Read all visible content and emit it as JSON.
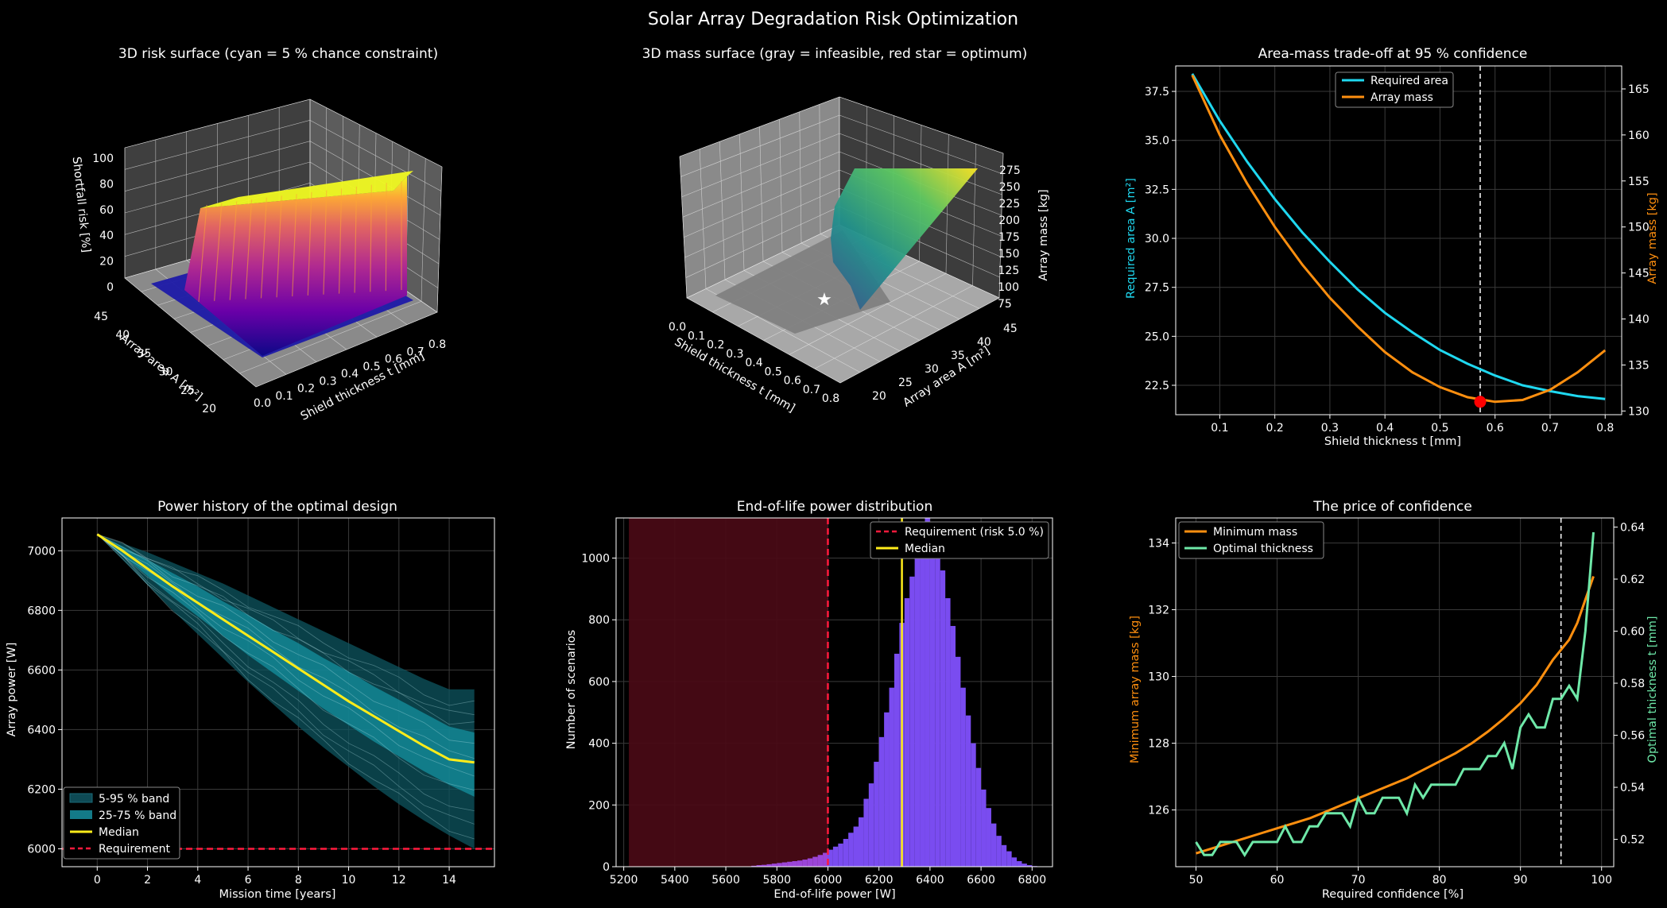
{
  "suptitle": "Solar Array Degradation Risk Optimization",
  "colors": {
    "cyan": "#1fd8f0",
    "orange": "#ff8f0f",
    "yellow": "#ffec1a",
    "red": "#ff1a3d",
    "purple": "#8c55ff",
    "green": "#6ee8a8",
    "white": "#ffffff"
  },
  "chart_data": [
    {
      "id": "risk3d",
      "type": "surface3d",
      "title": "3D risk surface  (cyan = 5 % chance constraint)",
      "xlabel": "Shield thickness t [mm]",
      "ylabel": "Array area A [m²]",
      "zlabel": "Shortfall risk [%]",
      "xticks": [
        "0.0",
        "0.1",
        "0.2",
        "0.3",
        "0.4",
        "0.5",
        "0.6",
        "0.7",
        "0.8"
      ],
      "yticks": [
        "20",
        "25",
        "30",
        "35",
        "40",
        "45"
      ],
      "zticks": [
        "0",
        "20",
        "40",
        "60",
        "80",
        "100"
      ]
    },
    {
      "id": "mass3d",
      "type": "surface3d",
      "title": "3D mass surface  (gray = infeasible, red star = optimum)",
      "xlabel": "Shield thickness t [mm]",
      "ylabel": "Array area A [m²]",
      "zlabel": "Array mass [kg]",
      "xticks": [
        "0.0",
        "0.1",
        "0.2",
        "0.3",
        "0.4",
        "0.5",
        "0.6",
        "0.7",
        "0.8"
      ],
      "yticks": [
        "20",
        "25",
        "30",
        "35",
        "40",
        "45"
      ],
      "zticks": [
        "75",
        "100",
        "125",
        "150",
        "175",
        "200",
        "225",
        "250",
        "275"
      ]
    },
    {
      "id": "tradeoff",
      "type": "line",
      "title": "Area-mass trade-off at 95 % confidence",
      "xlabel": "Shield thickness t [mm]",
      "ylabel": "Required area A [m²]",
      "y2label": "Array mass [kg]",
      "xlim": [
        0.02,
        0.83
      ],
      "ylim": [
        21.0,
        38.8
      ],
      "y2lim": [
        129.6,
        167.5
      ],
      "xticks": [
        0.1,
        0.2,
        0.3,
        0.4,
        0.5,
        0.6,
        0.7,
        0.8
      ],
      "yticks": [
        22.5,
        25.0,
        27.5,
        30.0,
        32.5,
        35.0,
        37.5
      ],
      "y2ticks": [
        130,
        135,
        140,
        145,
        150,
        155,
        160,
        165
      ],
      "vline": 0.573,
      "optimum": {
        "x": 0.573,
        "y2": 131.0
      },
      "series": [
        {
          "name": "Required area",
          "axis": "left",
          "x": [
            0.05,
            0.1,
            0.15,
            0.2,
            0.25,
            0.3,
            0.35,
            0.4,
            0.45,
            0.5,
            0.55,
            0.6,
            0.65,
            0.7,
            0.75,
            0.8
          ],
          "y": [
            38.4,
            36.0,
            33.9,
            32.0,
            30.3,
            28.8,
            27.4,
            26.2,
            25.2,
            24.3,
            23.6,
            23.0,
            22.5,
            22.2,
            21.95,
            21.8
          ]
        },
        {
          "name": "Array mass",
          "axis": "right",
          "x": [
            0.05,
            0.1,
            0.15,
            0.2,
            0.25,
            0.3,
            0.35,
            0.4,
            0.45,
            0.5,
            0.55,
            0.6,
            0.65,
            0.7,
            0.75,
            0.8
          ],
          "y": [
            166.5,
            160.0,
            154.7,
            150.0,
            145.9,
            142.3,
            139.2,
            136.4,
            134.2,
            132.6,
            131.5,
            131.0,
            131.2,
            132.3,
            134.2,
            136.6
          ]
        }
      ]
    },
    {
      "id": "power",
      "type": "line",
      "title": "Power history of the optimal design",
      "xlabel": "Mission time [years]",
      "ylabel": "Array power [W]",
      "xlim": [
        -1.4,
        15.8
      ],
      "ylim": [
        5940,
        7110
      ],
      "xticks": [
        0,
        2,
        4,
        6,
        8,
        10,
        12,
        14
      ],
      "yticks": [
        6000,
        6200,
        6400,
        6600,
        6800,
        7000
      ],
      "x": [
        0,
        1,
        2,
        3,
        4,
        5,
        6,
        7,
        8,
        9,
        10,
        11,
        12,
        13,
        14,
        15
      ],
      "median": [
        7055,
        7000,
        6940,
        6880,
        6825,
        6770,
        6715,
        6660,
        6605,
        6550,
        6495,
        6445,
        6395,
        6345,
        6300,
        6290
      ],
      "band_5_95": {
        "low": [
          7055,
          6970,
          6885,
          6800,
          6720,
          6640,
          6560,
          6485,
          6410,
          6340,
          6275,
          6210,
          6150,
          6095,
          6045,
          6000
        ],
        "high": [
          7055,
          7025,
          6995,
          6960,
          6925,
          6890,
          6850,
          6810,
          6770,
          6730,
          6690,
          6650,
          6610,
          6570,
          6535,
          6535
        ]
      },
      "band_25_75": {
        "low": [
          7055,
          6985,
          6915,
          6845,
          6780,
          6715,
          6650,
          6590,
          6530,
          6470,
          6415,
          6360,
          6310,
          6260,
          6215,
          6175
        ],
        "high": [
          7055,
          7015,
          6970,
          6925,
          6880,
          6830,
          6785,
          6735,
          6690,
          6640,
          6595,
          6545,
          6500,
          6455,
          6410,
          6390
        ]
      },
      "requirement": 6000,
      "legend": [
        "5-95 % band",
        "25-75 % band",
        "Median",
        "Requirement"
      ]
    },
    {
      "id": "eol",
      "type": "bar",
      "title": "End-of-life power distribution",
      "xlabel": "End-of-life power [W]",
      "ylabel": "Number of scenarios",
      "xlim": [
        5170,
        6880
      ],
      "ylim": [
        0,
        1130
      ],
      "xticks": [
        5200,
        5400,
        5600,
        5800,
        6000,
        6200,
        6400,
        6600,
        6800
      ],
      "yticks": [
        0,
        200,
        400,
        600,
        800,
        1000
      ],
      "bin_start": 5220,
      "bin_width": 20,
      "counts": [
        0,
        0,
        0,
        0,
        0,
        0,
        0,
        0,
        0,
        0,
        0,
        0,
        0,
        0,
        0,
        0,
        0,
        0,
        0,
        0,
        0,
        0,
        0,
        0,
        3,
        5,
        6,
        8,
        10,
        12,
        14,
        16,
        18,
        20,
        23,
        27,
        32,
        38,
        45,
        55,
        65,
        75,
        90,
        110,
        130,
        160,
        220,
        270,
        340,
        420,
        500,
        580,
        690,
        790,
        870,
        940,
        1010,
        1050,
        1130,
        1100,
        1050,
        960,
        870,
        780,
        680,
        580,
        490,
        400,
        320,
        250,
        190,
        140,
        100,
        70,
        50,
        30,
        18,
        10,
        5,
        2
      ],
      "requirement": 6000,
      "median": 6290,
      "risk_start": 5220,
      "legend": [
        "Requirement (risk 5.0 %)",
        "Median"
      ]
    },
    {
      "id": "price",
      "type": "line",
      "title": "The price of confidence",
      "xlabel": "Required confidence [%]",
      "ylabel": "Minimum array mass [kg]",
      "y2label": "Optimal thickness t [mm]",
      "xlim": [
        47.5,
        101.5
      ],
      "ylim": [
        124.3,
        134.75
      ],
      "y2lim": [
        0.5095,
        0.6435
      ],
      "xticks": [
        50,
        60,
        70,
        80,
        90,
        100
      ],
      "yticks": [
        126,
        128,
        130,
        132,
        134
      ],
      "y2ticks": [
        0.52,
        0.54,
        0.56,
        0.58,
        0.6,
        0.62,
        0.64
      ],
      "vline": 95,
      "series": [
        {
          "name": "Minimum mass",
          "axis": "left",
          "x": [
            50,
            52,
            54,
            56,
            58,
            60,
            62,
            64,
            66,
            68,
            70,
            72,
            74,
            76,
            78,
            80,
            82,
            84,
            86,
            88,
            90,
            92,
            94,
            95,
            96,
            97,
            98,
            99
          ],
          "y": [
            124.7,
            124.85,
            125.0,
            125.15,
            125.3,
            125.45,
            125.6,
            125.75,
            125.95,
            126.15,
            126.35,
            126.55,
            126.75,
            126.95,
            127.2,
            127.45,
            127.7,
            128.0,
            128.35,
            128.75,
            129.2,
            129.75,
            130.5,
            130.8,
            131.1,
            131.6,
            132.3,
            133.0
          ]
        },
        {
          "name": "Optimal thickness",
          "axis": "right",
          "x": [
            50,
            51,
            52,
            53,
            54,
            55,
            56,
            57,
            58,
            59,
            60,
            61,
            62,
            63,
            64,
            65,
            66,
            67,
            68,
            69,
            70,
            71,
            72,
            73,
            74,
            75,
            76,
            77,
            78,
            79,
            80,
            81,
            82,
            83,
            84,
            85,
            86,
            87,
            88,
            89,
            90,
            91,
            92,
            93,
            94,
            95,
            96,
            97,
            98,
            99
          ],
          "y": [
            0.519,
            0.514,
            0.514,
            0.519,
            0.519,
            0.519,
            0.514,
            0.519,
            0.519,
            0.519,
            0.519,
            0.525,
            0.519,
            0.519,
            0.525,
            0.525,
            0.53,
            0.53,
            0.53,
            0.525,
            0.536,
            0.53,
            0.53,
            0.536,
            0.536,
            0.536,
            0.53,
            0.541,
            0.536,
            0.541,
            0.541,
            0.541,
            0.541,
            0.547,
            0.547,
            0.547,
            0.552,
            0.552,
            0.557,
            0.547,
            0.563,
            0.568,
            0.563,
            0.563,
            0.574,
            0.574,
            0.579,
            0.574,
            0.6,
            0.638
          ]
        }
      ]
    }
  ]
}
